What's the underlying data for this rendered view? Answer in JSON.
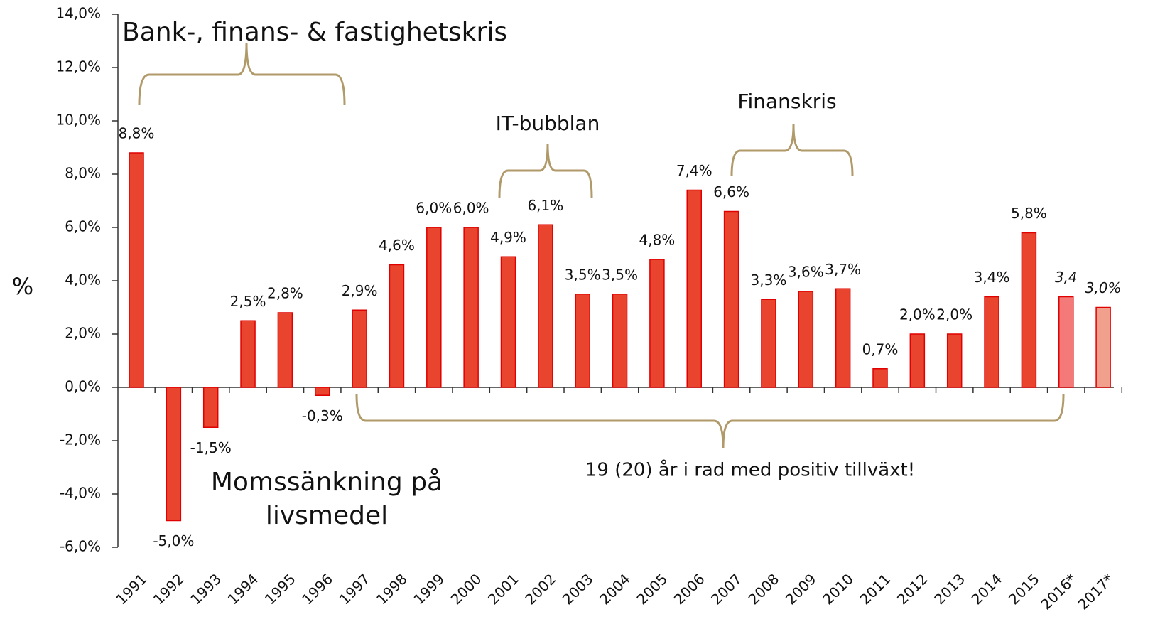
{
  "chart_data": {
    "type": "bar",
    "categories": [
      "1991",
      "1992",
      "1993",
      "1994",
      "1995",
      "1996",
      "1997",
      "1998",
      "1999",
      "2000",
      "2001",
      "2002",
      "2003",
      "2004",
      "2005",
      "2006",
      "2007",
      "2008",
      "2009",
      "2010",
      "2011",
      "2012",
      "2013",
      "2014",
      "2015",
      "2016*",
      "2017*"
    ],
    "values": [
      8.8,
      -5.0,
      -1.5,
      2.5,
      2.8,
      -0.3,
      2.9,
      4.6,
      6.0,
      6.0,
      4.9,
      6.1,
      3.5,
      3.5,
      4.8,
      7.4,
      6.6,
      3.3,
      3.6,
      3.7,
      0.7,
      2.0,
      2.0,
      3.4,
      5.8,
      3.4,
      3.0
    ],
    "value_labels": [
      "8,8%",
      "-5,0%",
      "-1,5%",
      "2,5%",
      "2,8%",
      "-0,3%",
      "2,9%",
      "4,6%",
      "6,0%",
      "6,0%",
      "4,9%",
      "6,1%",
      "3,5%",
      "3,5%",
      "4,8%",
      "7,4%",
      "6,6%",
      "3,3%",
      "3,6%",
      "3,7%",
      "0,7%",
      "2,0%",
      "2,0%",
      "3,4%",
      "5,8%",
      "3,4",
      "3,0%"
    ],
    "colors": [
      "#e8442e",
      "#e8442e",
      "#e8442e",
      "#e8442e",
      "#e8442e",
      "#e8442e",
      "#e8442e",
      "#e8442e",
      "#e8442e",
      "#e8442e",
      "#e8442e",
      "#e8442e",
      "#e8442e",
      "#e8442e",
      "#e8442e",
      "#e8442e",
      "#e8442e",
      "#e8442e",
      "#e8442e",
      "#e8442e",
      "#e8442e",
      "#e8442e",
      "#e8442e",
      "#e8442e",
      "#e8442e",
      "#f47a7a",
      "#f2a08e"
    ],
    "y_label": "%",
    "ylim": [
      -6,
      14
    ],
    "yticks": [
      {
        "value": -6,
        "label": "-6,0%"
      },
      {
        "value": -4,
        "label": "-4,0%"
      },
      {
        "value": -2,
        "label": "-2,0%"
      },
      {
        "value": 0,
        "label": "0,0%"
      },
      {
        "value": 2,
        "label": "2,0%"
      },
      {
        "value": 4,
        "label": "4,0%"
      },
      {
        "value": 6,
        "label": "6,0%"
      },
      {
        "value": 8,
        "label": "8,0%"
      },
      {
        "value": 10,
        "label": "10,0%"
      },
      {
        "value": 12,
        "label": "12,0%"
      },
      {
        "value": 14,
        "label": "14,0%"
      }
    ],
    "annotations": [
      "Bank-, finans- & fastighetskris",
      "IT-bubblan",
      "Finanskris",
      "19 (20) år i rad med positiv tillväxt!",
      [
        "Momssänkning på",
        "livsmedel"
      ]
    ]
  }
}
